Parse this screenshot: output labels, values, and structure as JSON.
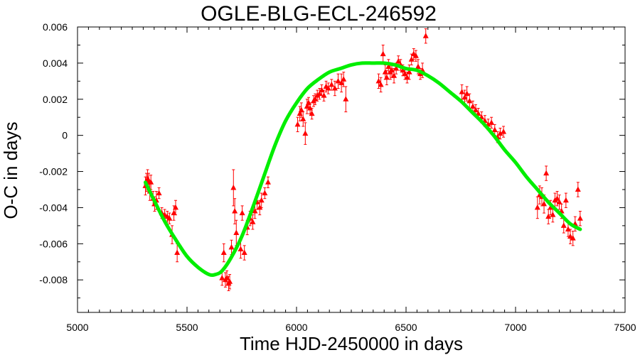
{
  "chart_data": {
    "type": "scatter",
    "title": "OGLE-BLG-ECL-246592",
    "xlabel": "Time HJD-2450000 in days",
    "ylabel": "O-C in days",
    "xlim": [
      5000,
      7500
    ],
    "ylim": [
      -0.0098,
      0.006
    ],
    "xticks": [
      5000,
      5500,
      6000,
      6500,
      7000,
      7500
    ],
    "yticks": [
      -0.008,
      -0.006,
      -0.004,
      -0.002,
      0,
      0.002,
      0.004,
      0.006
    ],
    "xtick_labels": [
      "5000",
      "5500",
      "6000",
      "6500",
      "7000",
      "7500"
    ],
    "ytick_labels": [
      "-0.008",
      "-0.006",
      "-0.004",
      "-0.002",
      "0",
      "0.002",
      "0.004",
      "0.006"
    ],
    "grid": false,
    "colors": {
      "points": "#ff0000",
      "fit": "#00ee00",
      "axes": "#000000"
    },
    "series": [
      {
        "kind": "points_with_errorbars",
        "x": [
          5310,
          5315,
          5320,
          5325,
          5330,
          5335,
          5345,
          5352,
          5360,
          5372,
          5385,
          5398,
          5410,
          5420,
          5432,
          5440,
          5448,
          5455,
          5660,
          5668,
          5675,
          5682,
          5690,
          5695,
          5703,
          5712,
          5718,
          5725,
          5745,
          5752,
          5762,
          5775,
          5788,
          5800,
          5810,
          5820,
          5832,
          5840,
          5855,
          5870,
          6005,
          6015,
          6022,
          6030,
          6040,
          6048,
          6055,
          6062,
          6070,
          6078,
          6085,
          6095,
          6105,
          6115,
          6125,
          6135,
          6145,
          6160,
          6175,
          6190,
          6205,
          6215,
          6225,
          6375,
          6385,
          6395,
          6405,
          6412,
          6420,
          6428,
          6435,
          6445,
          6455,
          6465,
          6475,
          6485,
          6495,
          6505,
          6515,
          6525,
          6535,
          6545,
          6555,
          6565,
          6575,
          6590,
          6755,
          6768,
          6778,
          6790,
          6805,
          6818,
          6830,
          6845,
          6860,
          6875,
          6890,
          6905,
          6918,
          6930,
          6945,
          7100,
          7110,
          7120,
          7130,
          7140,
          7150,
          7160,
          7170,
          7180,
          7190,
          7200,
          7210,
          7220,
          7230,
          7240,
          7250,
          7262,
          7272,
          7285,
          7295
        ],
        "y": [
          -0.0028,
          -0.0026,
          -0.0024,
          -0.0025,
          -0.0031,
          -0.0026,
          -0.0035,
          -0.0038,
          -0.0036,
          -0.0032,
          -0.0043,
          -0.0044,
          -0.0045,
          -0.0046,
          -0.0055,
          -0.0043,
          -0.004,
          -0.0065,
          -0.0079,
          -0.0065,
          -0.008,
          -0.0079,
          -0.0082,
          -0.0081,
          -0.0062,
          -0.0029,
          -0.0042,
          -0.0054,
          -0.0063,
          -0.0043,
          -0.0065,
          -0.0051,
          -0.0046,
          -0.0048,
          -0.0042,
          -0.0037,
          -0.004,
          -0.0036,
          -0.0032,
          -0.0026,
          0.0006,
          0.0012,
          0.0014,
          0.0009,
          0.0001,
          0.0016,
          0.0018,
          0.0015,
          0.0012,
          0.0019,
          0.002,
          0.0022,
          0.0023,
          0.0025,
          0.0022,
          0.0027,
          0.0026,
          0.0028,
          0.0026,
          0.003,
          0.0029,
          0.0031,
          0.002,
          0.003,
          0.0028,
          0.0045,
          0.0035,
          0.0032,
          0.0038,
          0.0035,
          0.0036,
          0.0033,
          0.0037,
          0.0041,
          0.0039,
          0.0036,
          0.0034,
          0.0032,
          0.0035,
          0.0042,
          0.0045,
          0.0044,
          0.0038,
          0.0034,
          0.0036,
          0.0055,
          0.0024,
          0.0021,
          0.0023,
          0.0019,
          0.0016,
          0.0014,
          0.0012,
          0.001,
          0.0008,
          0.0006,
          0.0007,
          0.0003,
          -0.0001,
          0.0001,
          0.0002,
          -0.004,
          -0.0033,
          -0.0034,
          -0.0038,
          -0.0021,
          -0.0045,
          -0.004,
          -0.0044,
          -0.0036,
          -0.0035,
          -0.0037,
          -0.0042,
          -0.005,
          -0.0036,
          -0.0052,
          -0.0056,
          -0.0057,
          -0.0049,
          -0.003,
          -0.0046
        ],
        "yerr": [
          0.0005,
          0.0005,
          0.0005,
          0.0004,
          0.0005,
          0.0004,
          0.0004,
          0.0004,
          0.0005,
          0.0003,
          0.0003,
          0.0003,
          0.0003,
          0.0003,
          0.0005,
          0.0004,
          0.0004,
          0.0005,
          0.0004,
          0.0005,
          0.0004,
          0.0004,
          0.0004,
          0.0004,
          0.0004,
          0.001,
          0.0007,
          0.0007,
          0.0005,
          0.0004,
          0.0004,
          0.0004,
          0.0004,
          0.0004,
          0.0004,
          0.0004,
          0.0004,
          0.0004,
          0.0003,
          0.0003,
          0.0004,
          0.0004,
          0.0004,
          0.0004,
          0.0006,
          0.0004,
          0.0003,
          0.0003,
          0.0003,
          0.0003,
          0.0003,
          0.0003,
          0.0003,
          0.0003,
          0.0003,
          0.0003,
          0.0003,
          0.0003,
          0.0004,
          0.0004,
          0.0005,
          0.0004,
          0.0007,
          0.0004,
          0.0004,
          0.0005,
          0.0004,
          0.0004,
          0.0004,
          0.0004,
          0.0004,
          0.0004,
          0.0003,
          0.0003,
          0.0003,
          0.0003,
          0.0003,
          0.0003,
          0.0004,
          0.0003,
          0.0003,
          0.0003,
          0.0004,
          0.0003,
          0.0004,
          0.0004,
          0.0004,
          0.0004,
          0.0004,
          0.0004,
          0.0003,
          0.0003,
          0.0003,
          0.0003,
          0.0003,
          0.0003,
          0.0003,
          0.0003,
          0.0003,
          0.0003,
          0.0003,
          0.0006,
          0.0005,
          0.0005,
          0.0005,
          0.0004,
          0.0004,
          0.0004,
          0.0004,
          0.0004,
          0.0004,
          0.0004,
          0.0004,
          0.0004,
          0.0004,
          0.0004,
          0.0004,
          0.0004,
          0.0004,
          0.0004,
          0.0004
        ]
      },
      {
        "kind": "fit_curve",
        "x": [
          5310,
          5350,
          5400,
          5450,
          5500,
          5550,
          5600,
          5630,
          5660,
          5700,
          5750,
          5800,
          5850,
          5900,
          5950,
          6000,
          6050,
          6100,
          6150,
          6200,
          6250,
          6300,
          6350,
          6400,
          6450,
          6500,
          6550,
          6600,
          6650,
          6700,
          6750,
          6800,
          6850,
          6900,
          6950,
          7000,
          7050,
          7100,
          7150,
          7200,
          7250,
          7295
        ],
        "y": [
          -0.0026,
          -0.0036,
          -0.0048,
          -0.0058,
          -0.0067,
          -0.0073,
          -0.0077,
          -0.0077,
          -0.0075,
          -0.0068,
          -0.0056,
          -0.004,
          -0.0023,
          -0.0006,
          0.0008,
          0.0018,
          0.0026,
          0.0031,
          0.0035,
          0.0037,
          0.0039,
          0.004,
          0.004,
          0.004,
          0.0039,
          0.0037,
          0.0036,
          0.0033,
          0.0029,
          0.0024,
          0.0019,
          0.0013,
          0.0007,
          0.0,
          -0.0008,
          -0.0015,
          -0.0023,
          -0.003,
          -0.0037,
          -0.0043,
          -0.0049,
          -0.0052
        ]
      }
    ]
  }
}
